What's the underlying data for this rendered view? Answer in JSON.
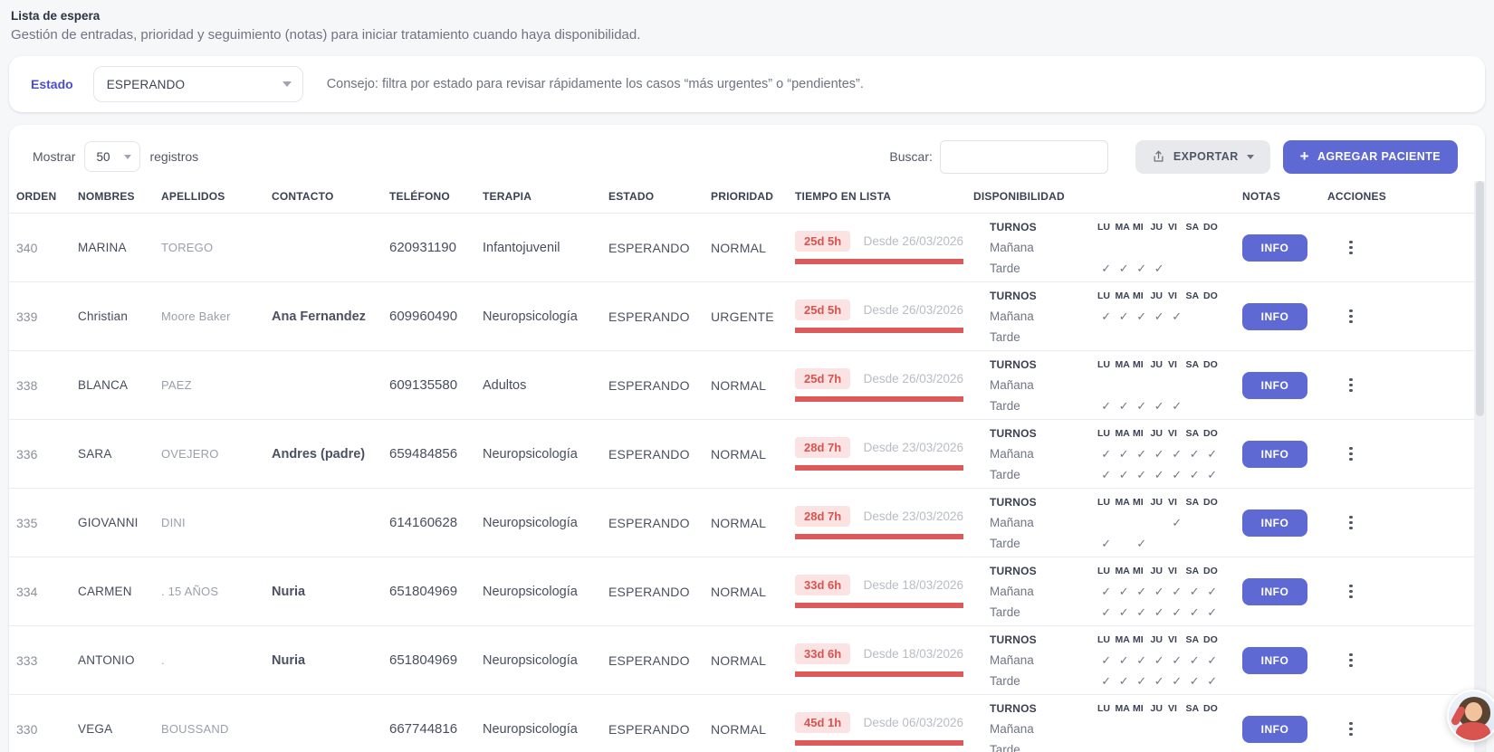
{
  "page": {
    "title": "Lista de espera",
    "subtitle": "Gestión de entradas, prioridad y seguimiento (notas) para iniciar tratamiento cuando haya disponibilidad."
  },
  "filter": {
    "label": "Estado",
    "value": "ESPERANDO",
    "tip": "Consejo: filtra por estado para revisar rápidamente los casos “más urgentes” o “pendientes”."
  },
  "toolbar": {
    "show_label": "Mostrar",
    "page_size": "50",
    "records_label": "registros",
    "search_label": "Buscar:",
    "search_value": "",
    "export_label": "EXPORTAR",
    "add_label": "AGREGAR PACIENTE",
    "add_plus": "+"
  },
  "table": {
    "headers": [
      "ORDEN",
      "NOMBRES",
      "APELLIDOS",
      "CONTACTO",
      "TELÉFONO",
      "TERAPIA",
      "ESTADO",
      "PRIORIDAD",
      "TIEMPO EN LISTA",
      "DISPONIBILIDAD",
      "NOTAS",
      "ACCIONES"
    ],
    "turnos_label": "TURNOS",
    "manana_label": "Mañana",
    "tarde_label": "Tarde",
    "days": [
      "LU",
      "MA",
      "MI",
      "JU",
      "VI",
      "SA",
      "DO"
    ],
    "check_glyph": "✓",
    "info_label": "INFO",
    "rows": [
      {
        "orden": "340",
        "nombres": "MARINA",
        "apellidos": "TOREGO",
        "contacto": "",
        "telefono": "620931190",
        "terapia": "Infantojuvenil",
        "estado": "ESPERANDO",
        "prioridad": "NORMAL",
        "tiempo": "25d 5h",
        "desde": "Desde 26/03/2026",
        "manana": [
          0,
          0,
          0,
          0,
          0,
          0,
          0
        ],
        "tarde": [
          1,
          1,
          1,
          1,
          0,
          0,
          0
        ]
      },
      {
        "orden": "339",
        "nombres": "Christian",
        "apellidos": "Moore Baker",
        "contacto": "Ana Fernandez",
        "telefono": "609960490",
        "terapia": "Neuropsicología",
        "estado": "ESPERANDO",
        "prioridad": "URGENTE",
        "tiempo": "25d 5h",
        "desde": "Desde 26/03/2026",
        "manana": [
          1,
          1,
          1,
          1,
          1,
          0,
          0
        ],
        "tarde": [
          0,
          0,
          0,
          0,
          0,
          0,
          0
        ]
      },
      {
        "orden": "338",
        "nombres": "BLANCA",
        "apellidos": "PAEZ",
        "contacto": "",
        "telefono": "609135580",
        "terapia": "Adultos",
        "estado": "ESPERANDO",
        "prioridad": "NORMAL",
        "tiempo": "25d 7h",
        "desde": "Desde 26/03/2026",
        "manana": [
          0,
          0,
          0,
          0,
          0,
          0,
          0
        ],
        "tarde": [
          1,
          1,
          1,
          1,
          1,
          0,
          0
        ]
      },
      {
        "orden": "336",
        "nombres": "SARA",
        "apellidos": "OVEJERO",
        "contacto": "Andres (padre)",
        "telefono": "659484856",
        "terapia": "Neuropsicología",
        "estado": "ESPERANDO",
        "prioridad": "NORMAL",
        "tiempo": "28d 7h",
        "desde": "Desde 23/03/2026",
        "manana": [
          1,
          1,
          1,
          1,
          1,
          1,
          1
        ],
        "tarde": [
          1,
          1,
          1,
          1,
          1,
          1,
          1
        ]
      },
      {
        "orden": "335",
        "nombres": "GIOVANNI",
        "apellidos": "DINI",
        "contacto": "",
        "telefono": "614160628",
        "terapia": "Neuropsicología",
        "estado": "ESPERANDO",
        "prioridad": "NORMAL",
        "tiempo": "28d 7h",
        "desde": "Desde 23/03/2026",
        "manana": [
          0,
          0,
          0,
          0,
          1,
          0,
          0
        ],
        "tarde": [
          1,
          0,
          1,
          0,
          0,
          0,
          0
        ]
      },
      {
        "orden": "334",
        "nombres": "CARMEN",
        "apellidos": ". 15 AÑOS",
        "contacto": "Nuria",
        "telefono": "651804969",
        "terapia": "Neuropsicología",
        "estado": "ESPERANDO",
        "prioridad": "NORMAL",
        "tiempo": "33d 6h",
        "desde": "Desde 18/03/2026",
        "manana": [
          1,
          1,
          1,
          1,
          1,
          1,
          1
        ],
        "tarde": [
          1,
          1,
          1,
          1,
          1,
          1,
          1
        ]
      },
      {
        "orden": "333",
        "nombres": "ANTONIO",
        "apellidos": ".",
        "contacto": "Nuria",
        "telefono": "651804969",
        "terapia": "Neuropsicología",
        "estado": "ESPERANDO",
        "prioridad": "NORMAL",
        "tiempo": "33d 6h",
        "desde": "Desde 18/03/2026",
        "manana": [
          1,
          1,
          1,
          1,
          1,
          1,
          1
        ],
        "tarde": [
          1,
          1,
          1,
          1,
          1,
          1,
          1
        ]
      },
      {
        "orden": "330",
        "nombres": "VEGA",
        "apellidos": "BOUSSAND",
        "contacto": "",
        "telefono": "667744816",
        "terapia": "Neuropsicología",
        "estado": "ESPERANDO",
        "prioridad": "NORMAL",
        "tiempo": "45d 1h",
        "desde": "Desde 06/03/2026",
        "manana": [
          0,
          0,
          0,
          0,
          0,
          0,
          0
        ],
        "tarde": [
          0,
          0,
          0,
          0,
          0,
          0,
          0
        ]
      }
    ]
  },
  "colors": {
    "accent": "#5e69d3",
    "estado_label": "#4a50c8",
    "badge_bg": "#fbe3e3",
    "badge_text": "#d9534f",
    "progress_bar": "#dd5a5a",
    "page_bg": "#f6f7f9"
  }
}
